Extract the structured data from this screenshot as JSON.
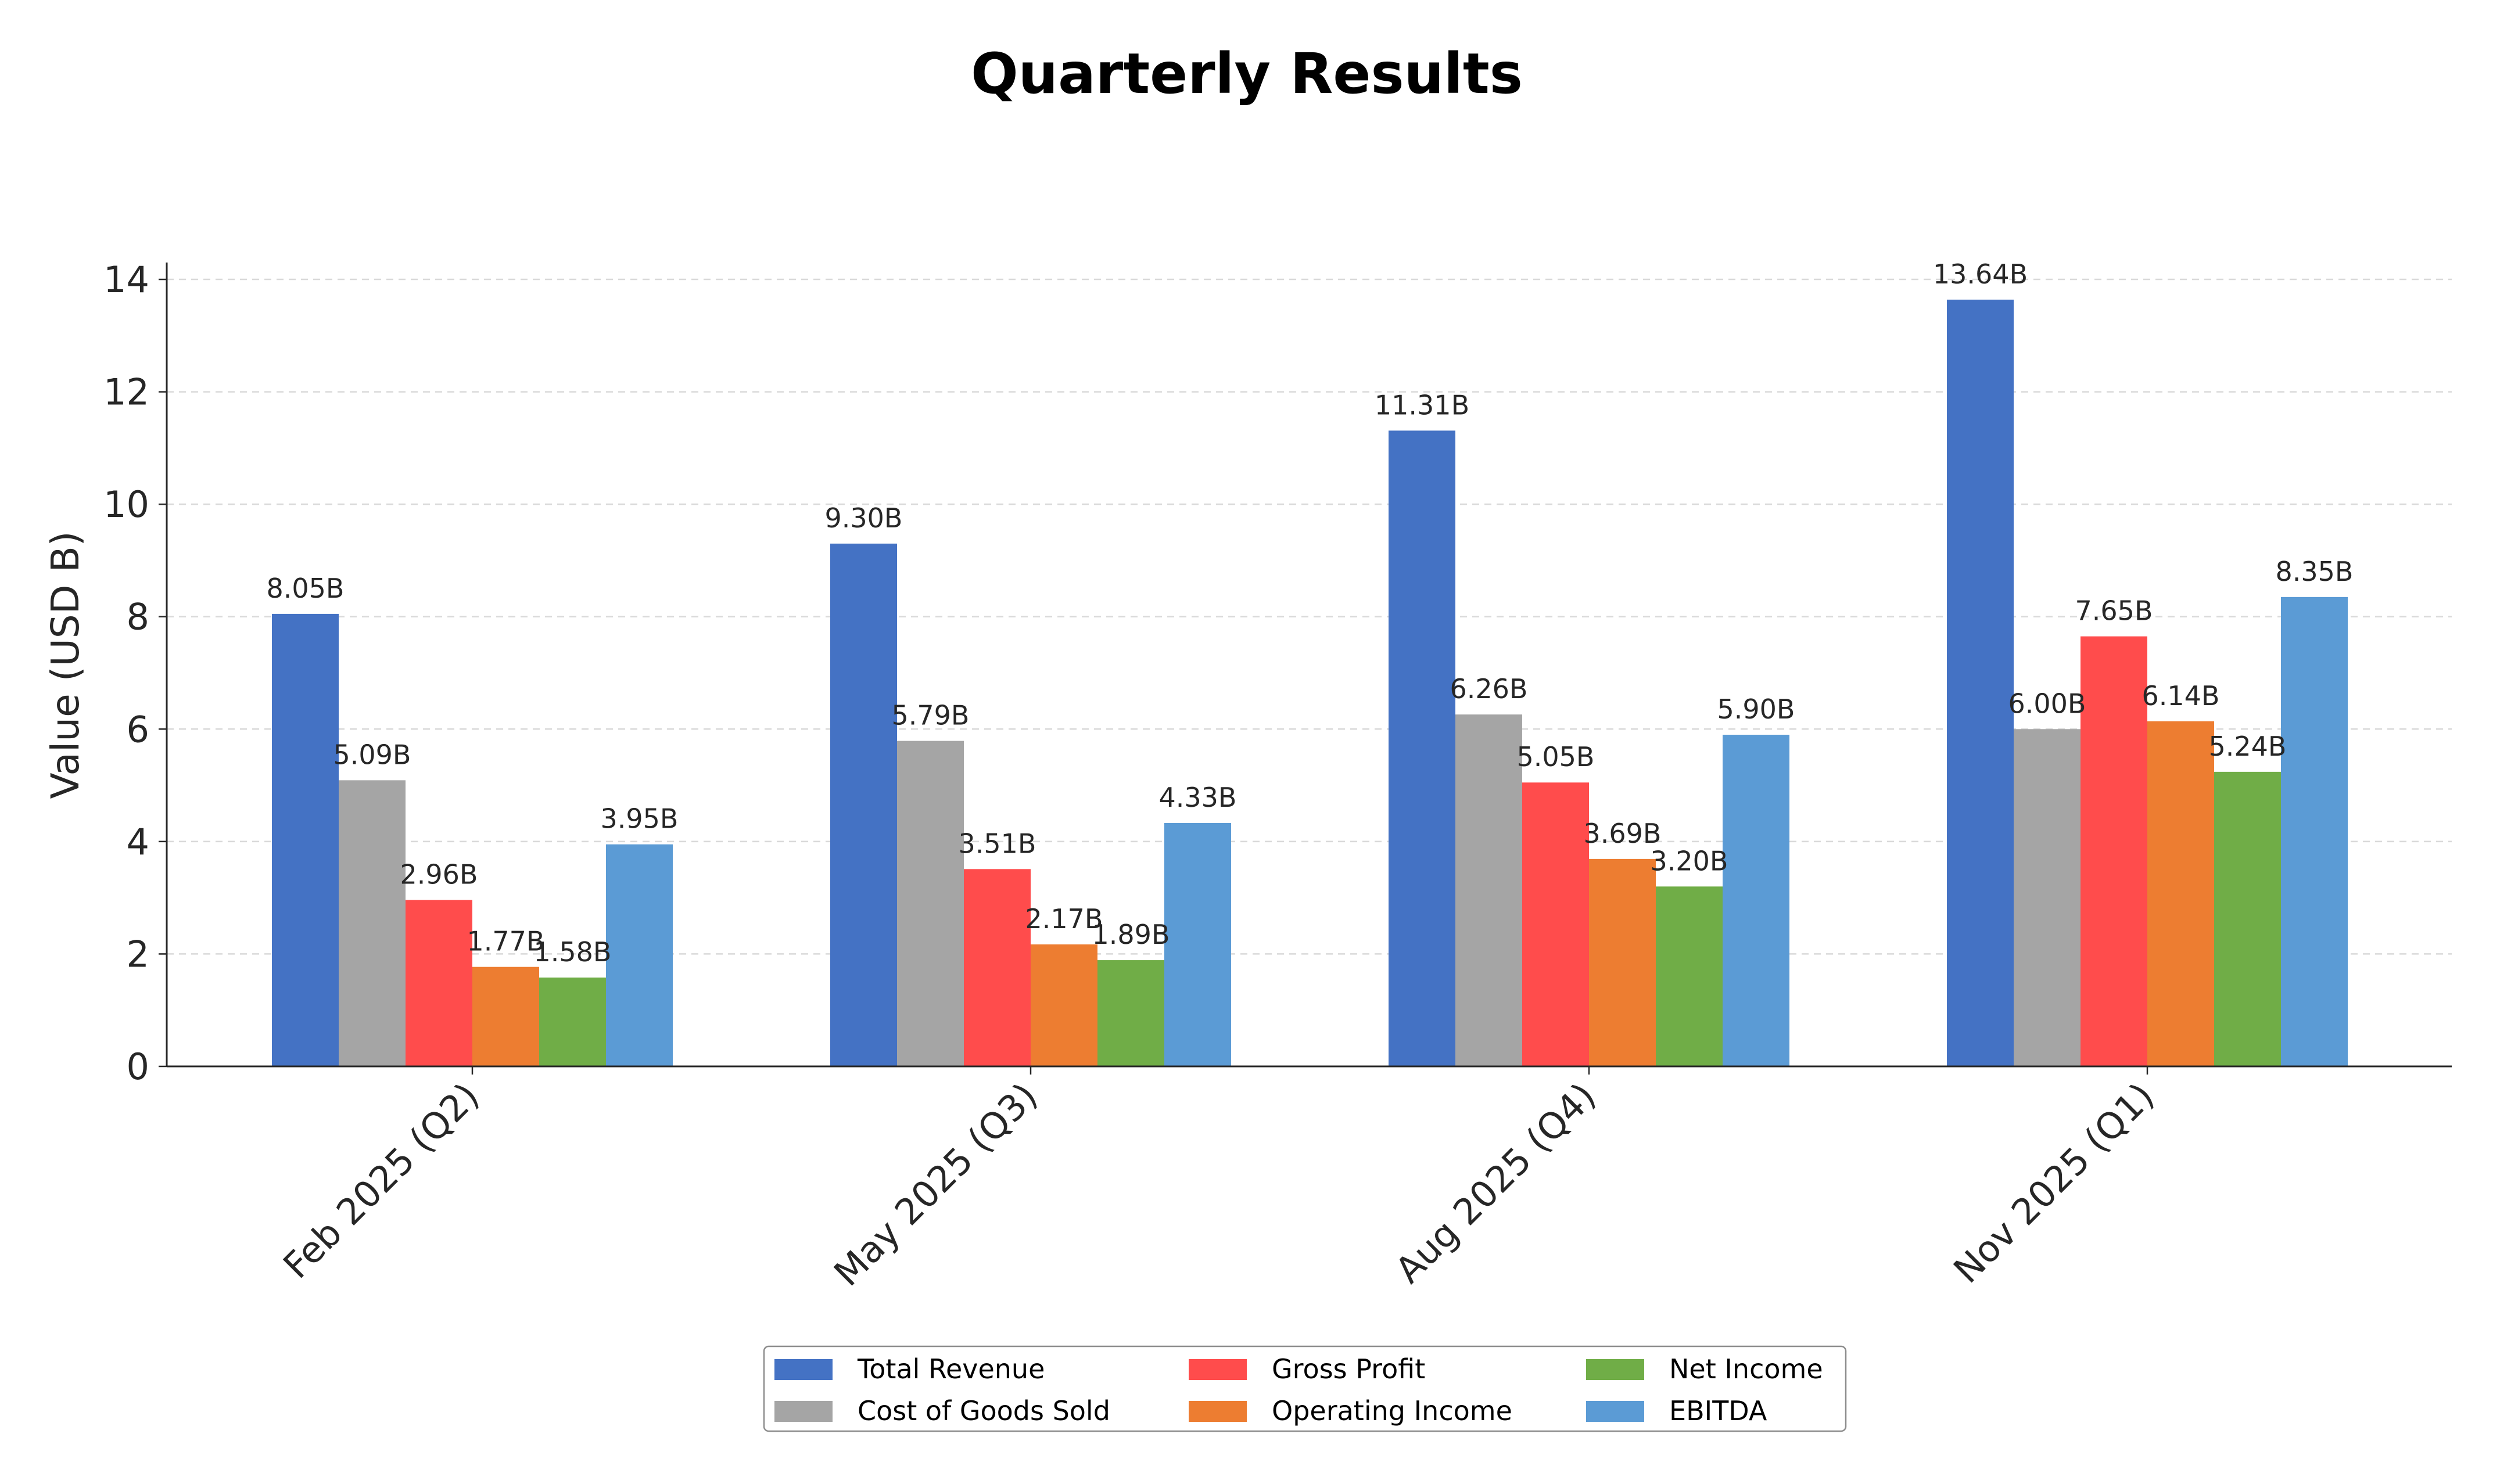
{
  "chart_data": {
    "type": "bar",
    "title": "Quarterly Results",
    "ylabel": "Value (USD B)",
    "xlabel": "",
    "ylim": [
      0,
      14.3
    ],
    "yticks": [
      0,
      2,
      4,
      6,
      8,
      10,
      12,
      14
    ],
    "grid": "horizontal dashed",
    "categories": [
      "Feb 2025 (Q2)",
      "May 2025 (Q3)",
      "Aug 2025 (Q4)",
      "Nov 2025 (Q1)"
    ],
    "series": [
      {
        "name": "Total Revenue",
        "color": "#4472c4",
        "values": [
          8.05,
          9.3,
          11.31,
          13.64
        ],
        "labels": [
          "8.05B",
          "9.30B",
          "11.31B",
          "13.64B"
        ]
      },
      {
        "name": "Cost of Goods Sold",
        "color": "#a5a5a5",
        "values": [
          5.09,
          5.79,
          6.26,
          6.0
        ],
        "labels": [
          "5.09B",
          "5.79B",
          "6.26B",
          "6.00B"
        ]
      },
      {
        "name": "Gross Profit",
        "color": "#ff4c4c",
        "values": [
          2.96,
          3.51,
          5.05,
          7.65
        ],
        "labels": [
          "2.96B",
          "3.51B",
          "5.05B",
          "7.65B"
        ]
      },
      {
        "name": "Operating Income",
        "color": "#ed7d31",
        "values": [
          1.77,
          2.17,
          3.69,
          6.14
        ],
        "labels": [
          "1.77B",
          "2.17B",
          "3.69B",
          "6.14B"
        ]
      },
      {
        "name": "Net Income",
        "color": "#70ad47",
        "values": [
          1.58,
          1.89,
          3.2,
          5.24
        ],
        "labels": [
          "1.58B",
          "1.89B",
          "3.20B",
          "5.24B"
        ]
      },
      {
        "name": "EBITDA",
        "color": "#5b9bd5",
        "values": [
          3.95,
          4.33,
          5.9,
          8.35
        ],
        "labels": [
          "3.95B",
          "4.33B",
          "5.90B",
          "8.35B"
        ]
      }
    ],
    "legend": {
      "position": "bottom-center",
      "columns": 3
    }
  }
}
